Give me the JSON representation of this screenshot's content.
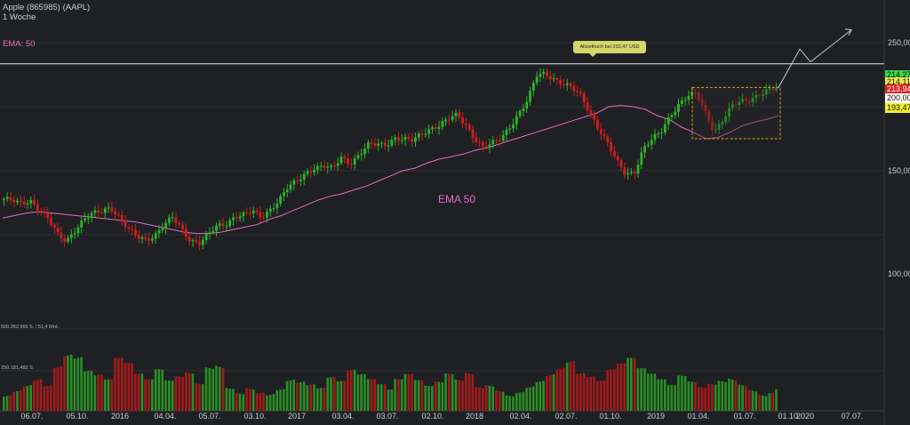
{
  "header": {
    "title": "Apple (865985) (AAPL)",
    "interval": "1 Woche"
  },
  "indicator": {
    "legend_label": "EMA: 50",
    "inline_label": "EMA 50",
    "color": "#e86bc4"
  },
  "annotation": {
    "all_time_high": "Allzeithoch bei 233,47 USD"
  },
  "volume_labels": [
    "500.362.965 S. / 51,4 Mrd.",
    "250.181.482 S."
  ],
  "y_axis_labels": [
    "250,00",
    "200,00",
    "150,00",
    "100,00"
  ],
  "price_tags": [
    {
      "text": "214,27",
      "bg": "#39d64a"
    },
    {
      "text": "214,11",
      "bg": "#e8e84a"
    },
    {
      "text": "213,94",
      "bg": "#e02424"
    },
    {
      "text": "200,00",
      "bg": "#ffffff"
    },
    {
      "text": "193,47",
      "bg": "#f3f12a"
    }
  ],
  "x_axis_labels": [
    "06.07.",
    "05.10.",
    "2016",
    "04.04.",
    "05.07.",
    "03.10.",
    "2017",
    "03.04.",
    "03.07.",
    "02.10.",
    "2018",
    "02.04.",
    "02.07.",
    "01.10.",
    "2019",
    "01.04.",
    "01.07.",
    "01.10.",
    "2020",
    "07.07."
  ],
  "colors": {
    "up": "#2fb52a",
    "down": "#d21d1d",
    "background": "#1e2023",
    "ema": "#e86bc4",
    "box": "#e0a020"
  },
  "chart_data": {
    "type": "candlestick",
    "title": "Apple (865985) (AAPL)",
    "interval": "1 Woche",
    "ylim": [
      40,
      270
    ],
    "y_ticks": [
      100,
      150,
      200,
      250
    ],
    "horizontal_line": 233.47,
    "x_ticks": [
      "06.07.",
      "05.10.",
      "2016",
      "04.04.",
      "05.07.",
      "03.10.",
      "2017",
      "03.04.",
      "03.07.",
      "02.10.",
      "2018",
      "02.04.",
      "02.07.",
      "01.10.",
      "2019",
      "01.04.",
      "01.07.",
      "01.10.",
      "2020",
      "07.07."
    ],
    "price_path": [
      128,
      126,
      124,
      127,
      120,
      112,
      100,
      95,
      104,
      112,
      116,
      118,
      122,
      114,
      104,
      98,
      96,
      100,
      108,
      113,
      104,
      96,
      94,
      100,
      106,
      108,
      115,
      116,
      118,
      113,
      120,
      128,
      137,
      141,
      148,
      153,
      154,
      151,
      160,
      156,
      163,
      170,
      170,
      170,
      176,
      175,
      173,
      178,
      183,
      186,
      190,
      193,
      186,
      176,
      168,
      171,
      175,
      185,
      195,
      205,
      224,
      226,
      222,
      218,
      214,
      208,
      196,
      183,
      171,
      157,
      148,
      149,
      167,
      174,
      180,
      193,
      202,
      208,
      210,
      196,
      181,
      190,
      200,
      204,
      206,
      210,
      212,
      214
    ],
    "ema_path": [
      113,
      115,
      117,
      118,
      117,
      116,
      115,
      114,
      113,
      112,
      111,
      110,
      108,
      106,
      104,
      102,
      101,
      101,
      102,
      104,
      106,
      108,
      112,
      115,
      119,
      123,
      127,
      130,
      132,
      135,
      138,
      142,
      146,
      150,
      152,
      156,
      159,
      161,
      163,
      166,
      168,
      171,
      174,
      177,
      180,
      183,
      186,
      189,
      192,
      195,
      200,
      201,
      200,
      198,
      193,
      190,
      184,
      180,
      175,
      176,
      180,
      185,
      188,
      190,
      193
    ],
    "boxed_range": {
      "low": 175,
      "high": 215
    },
    "projection": [
      [
        214,
        215
      ],
      [
        230,
        245
      ],
      [
        236,
        235
      ],
      [
        255,
        260
      ]
    ],
    "volume_levels": [
      "500.362.965 S.",
      "250.181.482 S."
    ],
    "volume_profile": [
      0.25,
      0.3,
      0.35,
      0.4,
      0.3,
      0.5,
      0.6,
      0.55,
      0.4,
      0.35,
      0.3,
      0.5,
      0.45,
      0.35,
      0.3,
      0.4,
      0.3,
      0.35,
      0.4,
      0.3,
      0.5,
      0.55,
      0.3,
      0.25,
      0.35,
      0.3,
      0.25,
      0.3,
      0.4,
      0.35,
      0.3,
      0.25,
      0.35,
      0.3,
      0.4,
      0.35,
      0.3,
      0.25,
      0.2,
      0.3,
      0.35,
      0.3,
      0.25,
      0.3,
      0.4,
      0.35,
      0.45,
      0.3,
      0.35,
      0.3,
      0.25,
      0.3,
      0.35,
      0.4,
      0.45,
      0.5,
      0.55,
      0.4,
      0.35,
      0.3,
      0.4,
      0.45,
      0.5,
      0.4,
      0.35,
      0.3,
      0.25,
      0.35,
      0.3,
      0.25,
      0.3,
      0.35,
      0.4,
      0.35,
      0.3,
      0.25,
      0.3,
      0.35
    ]
  }
}
